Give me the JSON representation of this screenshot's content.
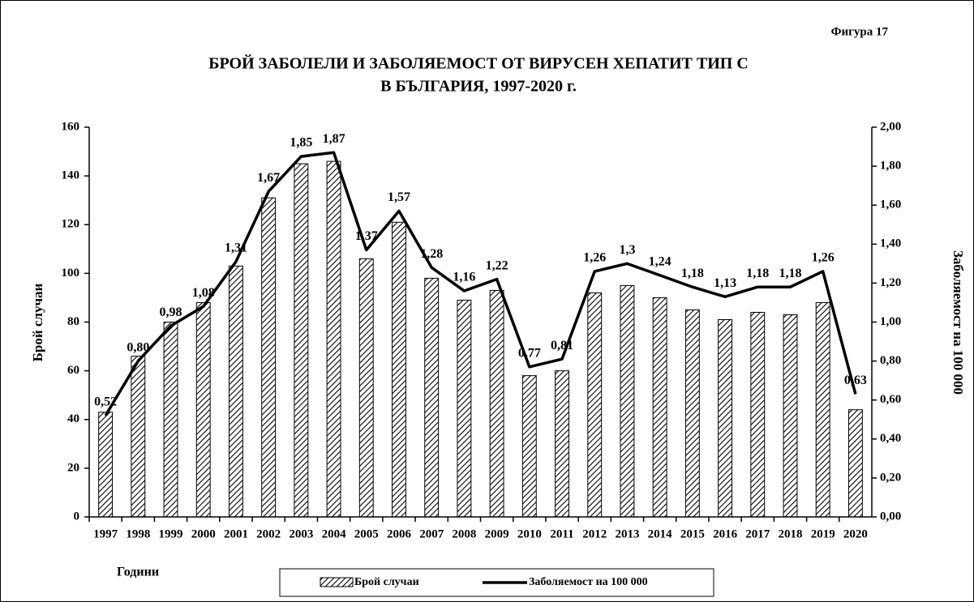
{
  "chart_data": {
    "type": "bar",
    "annotation": "Фигура 17",
    "title_lines": [
      "БРОЙ ЗАБОЛЕЛИ И ЗАБОЛЯЕМОСТ ОТ ВИРУСЕН ХЕПАТИТ ТИП С",
      "В БЪЛГАРИЯ, 1997-2020 г."
    ],
    "x_label": "Години",
    "y_label": "Брой случаи",
    "y2_label": "Заболяемост на 100 000",
    "categories": [
      "1997",
      "1998",
      "1999",
      "2000",
      "2001",
      "2002",
      "2003",
      "2004",
      "2005",
      "2006",
      "2007",
      "2008",
      "2009",
      "2010",
      "2011",
      "2012",
      "2013",
      "2014",
      "2015",
      "2016",
      "2017",
      "2018",
      "2019",
      "2020"
    ],
    "series": [
      {
        "name": "Брой случаи",
        "type": "bar",
        "color": "#000000",
        "values": [
          43,
          66,
          80,
          88,
          103,
          131,
          145,
          146,
          106,
          121,
          98,
          89,
          93,
          58,
          60,
          92,
          95,
          90,
          85,
          81,
          84,
          83,
          88,
          44
        ]
      },
      {
        "name": "Заболяемост на 100 000",
        "type": "line",
        "axis": "y2",
        "color": "#000000",
        "values": [
          0.52,
          0.8,
          0.98,
          1.08,
          1.31,
          1.67,
          1.85,
          1.87,
          1.37,
          1.57,
          1.28,
          1.16,
          1.22,
          0.77,
          0.81,
          1.26,
          1.3,
          1.24,
          1.18,
          1.13,
          1.18,
          1.18,
          1.26,
          0.63
        ],
        "value_labels": [
          "0,52",
          "0,80",
          "0,98",
          "1,08",
          "1,31",
          "1,67",
          "1,85",
          "1,87",
          "1,37",
          "1,57",
          "1,28",
          "1,16",
          "1,22",
          "0,77",
          "0,81",
          "1,26",
          "1,3",
          "1,24",
          "1,18",
          "1,13",
          "1,18",
          "1,18",
          "1,26",
          "0,63"
        ]
      }
    ],
    "ylim": [
      0,
      160
    ],
    "yticks": [
      0,
      20,
      40,
      60,
      80,
      100,
      120,
      140,
      160
    ],
    "y2lim": [
      0,
      2
    ],
    "y2ticks": [
      {
        "value": 0,
        "label": "0,00"
      },
      {
        "value": 0.2,
        "label": "0,20"
      },
      {
        "value": 0.4,
        "label": "0,40"
      },
      {
        "value": 0.6,
        "label": "0,60"
      },
      {
        "value": 0.8,
        "label": "0,80"
      },
      {
        "value": 1,
        "label": "1,00"
      },
      {
        "value": 1.2,
        "label": "1,20"
      },
      {
        "value": 1.4,
        "label": "1,40"
      },
      {
        "value": 1.6,
        "label": "1,60"
      },
      {
        "value": 1.8,
        "label": "1,80"
      },
      {
        "value": 2,
        "label": "2,00"
      }
    ],
    "grid": false
  }
}
